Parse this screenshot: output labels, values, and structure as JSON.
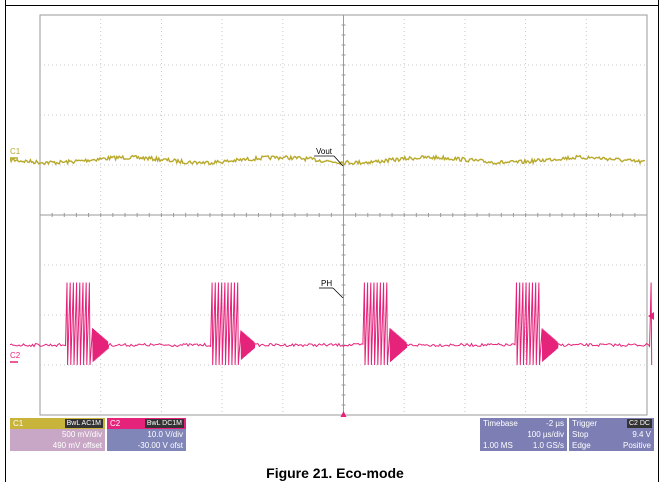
{
  "caption": "Figure 21. Eco-mode",
  "colors": {
    "ch1": "#b8a92a",
    "ch2": "#e5237a",
    "grid": "#c8c8c8",
    "panel_blue": "#7d7fb4",
    "panel_c1": "#c8a7c6",
    "panel_c2": "#8086b8"
  },
  "scope": {
    "c1_marker": "C1",
    "c2_marker": "C2",
    "vout_label": "Vout",
    "ph_label": "PH"
  },
  "c1_panel": {
    "name": "C1",
    "badge": "BwL AC1M",
    "scale": "500 mV/div",
    "offset": "490 mV offset"
  },
  "c2_panel": {
    "name": "C2",
    "badge": "BwL DC1M",
    "scale": "10.0 V/div",
    "offset": "-30.00 V ofst"
  },
  "timebase_panel": {
    "title": "Timebase",
    "delay": "-2 µs",
    "scale": "100 µs/div",
    "samples": "1.00 MS",
    "rate": "1.0 GS/s"
  },
  "trigger_panel": {
    "title": "Trigger",
    "badge": "C2 DC",
    "mode": "Stop",
    "level": "9.4 V",
    "type": "Edge",
    "slope": "Positive"
  },
  "chart_data": {
    "type": "line",
    "title": "Figure 21. Eco-mode",
    "xlabel": "",
    "ylabel": "",
    "x_divisions": 10,
    "y_divisions": 8,
    "series": [
      {
        "name": "Vout",
        "channel": "C1",
        "scale": "500 mV/div",
        "level_div": 0.1,
        "ripple_amplitude_div": 0.05,
        "noise_div": 0.04
      },
      {
        "name": "PH",
        "channel": "C2",
        "scale": "10.0 V/div",
        "baseline_div": 0,
        "burst_high_div": 1.05,
        "burst_low_div": -0.45,
        "bursts_div": [
          [
            0.43,
            1.13
          ],
          [
            2.83,
            3.53
          ],
          [
            5.33,
            6.03
          ],
          [
            7.83,
            8.53
          ],
          [
            10.05,
            10.7
          ]
        ]
      }
    ]
  }
}
